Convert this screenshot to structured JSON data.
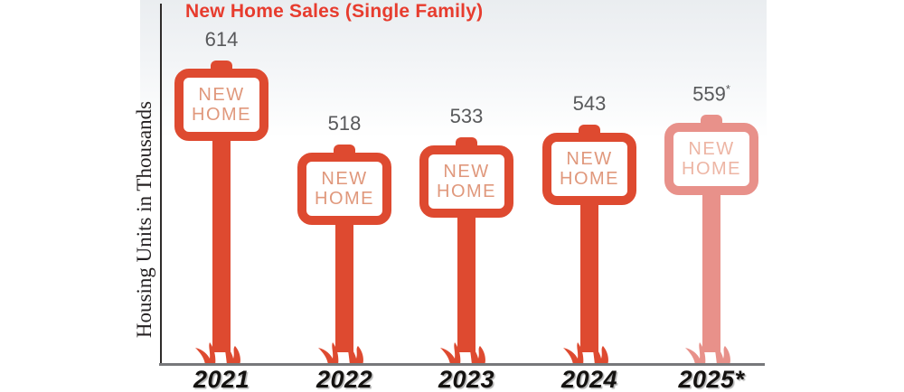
{
  "chart_data": {
    "type": "bar",
    "title": "New Home Sales (Single Family)",
    "ylabel": "Housing Units in Thousands",
    "categories": [
      "2021",
      "2022",
      "2023",
      "2024",
      "2025*"
    ],
    "values": [
      614,
      518,
      533,
      543,
      559
    ],
    "value_labels": [
      "614",
      "518",
      "533",
      "543",
      "559"
    ],
    "projected": [
      false,
      false,
      false,
      false,
      true
    ],
    "annotation": "2025 value marked with asterisk and drawn faded (projection)",
    "ylim": [
      0,
      650
    ],
    "grid": false,
    "legend": "none"
  },
  "sign": {
    "line1": "NEW",
    "line2": "HOME"
  },
  "colors": {
    "title_red": "#e73c2e",
    "sign_red": "#de4a30",
    "sign_text_salmon": "#e0987c",
    "faded_sign_pink": "#e8918a",
    "faded_text_pink": "#edb5a4",
    "value_gray": "#58595b",
    "year_black": "#141210",
    "baseline_gray": "#77787b",
    "panel_gray_top": "#eaedf0"
  }
}
